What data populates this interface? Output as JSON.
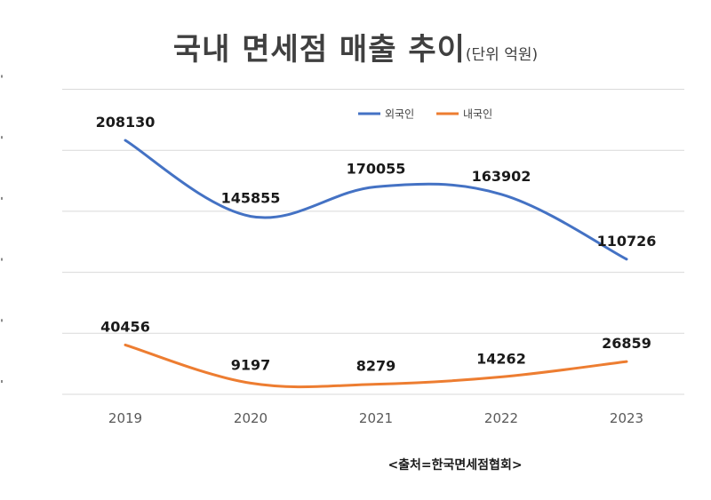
{
  "chart_data": {
    "type": "line",
    "title": "국내 면세점 매출 추이",
    "subtitle": "(단위 억원)",
    "categories": [
      "2019",
      "2020",
      "2021",
      "2022",
      "2023"
    ],
    "series": [
      {
        "name": "외국인",
        "color": "#4472C4",
        "values": [
          208130,
          145855,
          170055,
          163902,
          110726
        ]
      },
      {
        "name": "내국인",
        "color": "#ED7D31",
        "values": [
          40456,
          9197,
          8279,
          14262,
          26859
        ]
      }
    ],
    "ylim": [
      0,
      250000
    ],
    "grid": true,
    "legend": "top-center",
    "source": "<출처=한국면세점협회>"
  }
}
